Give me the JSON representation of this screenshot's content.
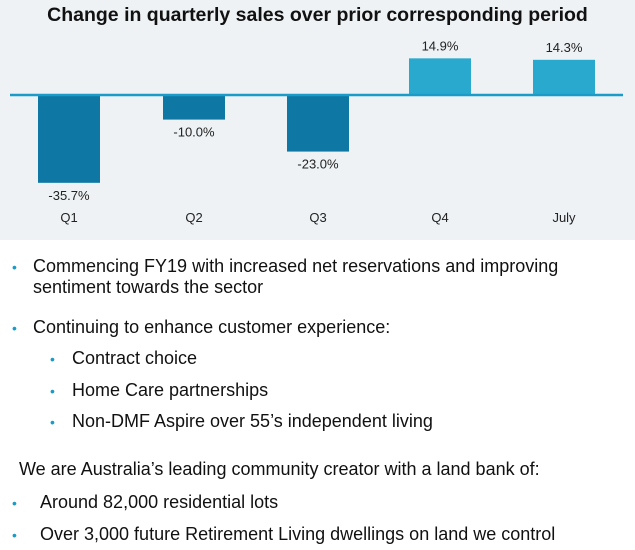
{
  "chart_data": {
    "type": "bar",
    "title": "Change in quarterly sales over prior corresponding period",
    "categories": [
      "Q1",
      "Q2",
      "Q3",
      "Q4",
      "July"
    ],
    "values": [
      -35.7,
      -10.0,
      -23.0,
      14.9,
      14.3
    ],
    "value_labels": [
      "-35.7%",
      "-10.0%",
      "-23.0%",
      "14.9%",
      "14.3%"
    ],
    "xlabel": "",
    "ylabel": "",
    "ylim": [
      -36,
      15
    ],
    "grid": false,
    "colors": {
      "negative": "#0e77a3",
      "positive": "#29a9cd",
      "axis": "#1a9bc8"
    }
  },
  "bullets": {
    "b1_line1": "Commencing FY19 with increased net reservations and improving",
    "b1_line2": "sentiment towards the sector",
    "b2": "Continuing to enhance customer experience:",
    "sub1": "Contract choice",
    "sub2": "Home Care partnerships",
    "sub3": "Non-DMF Aspire over 55’s independent living",
    "intro": "We are Australia’s leading community creator with a land bank of:",
    "b3": "Around 82,000 residential lots",
    "b4": "Over 3,000 future Retirement Living dwellings on land we control",
    "bullet_char": "•",
    "bullet_color": "#1a9bc8"
  }
}
